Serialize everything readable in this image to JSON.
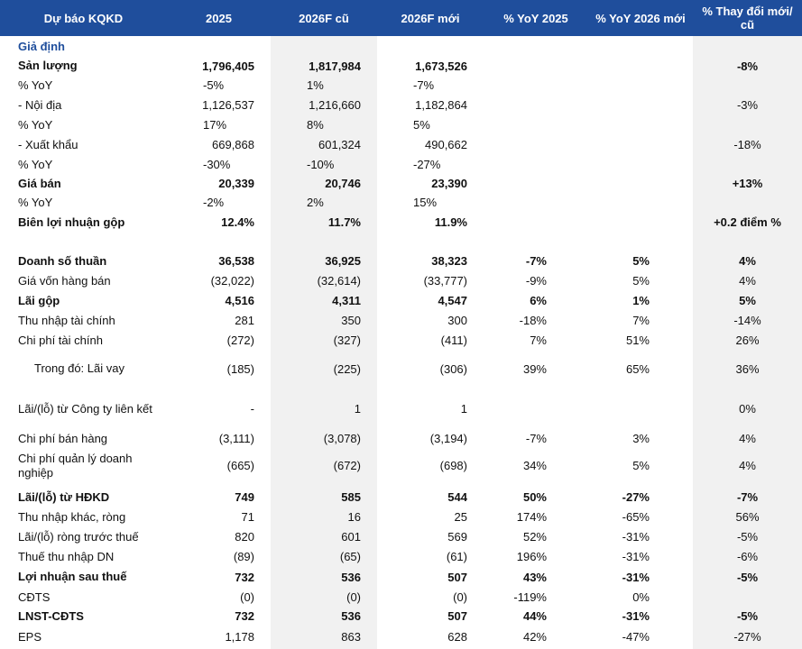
{
  "header": {
    "col_label": "Dự báo KQKD",
    "col_2025": "2025",
    "col_2026_old": "2026F cũ",
    "col_2026_new": "2026F mới",
    "col_yoy_2025": "% YoY 2025",
    "col_yoy_2026": "% YoY 2026 mới",
    "col_change": "% Thay đổi mới/ cũ"
  },
  "colors": {
    "header_bg": "#1f4e9c",
    "section_text": "#1f4e9c",
    "shade": "#f1f1f1"
  },
  "rows": [
    {
      "label": "Giả định",
      "v2025": "",
      "v26o": "",
      "v26n": "",
      "y25": "",
      "y26": "",
      "chg": ""
    },
    {
      "label": "Sản lượng",
      "v2025": "1,796,405",
      "v26o": "1,817,984",
      "v26n": "1,673,526",
      "y25": "",
      "y26": "",
      "chg": "-8%"
    },
    {
      "label": "% YoY",
      "v2025": "-5%",
      "v26o": "1%",
      "v26n": "-7%",
      "y25": "",
      "y26": "",
      "chg": ""
    },
    {
      "label": "- Nội địa",
      "v2025": "1,126,537",
      "v26o": "1,216,660",
      "v26n": "1,182,864",
      "y25": "",
      "y26": "",
      "chg": "-3%"
    },
    {
      "label": "% YoY",
      "v2025": "17%",
      "v26o": "8%",
      "v26n": "5%",
      "y25": "",
      "y26": "",
      "chg": ""
    },
    {
      "label": "- Xuất khẩu",
      "v2025": "669,868",
      "v26o": "601,324",
      "v26n": "490,662",
      "y25": "",
      "y26": "",
      "chg": "-18%"
    },
    {
      "label": "% YoY",
      "v2025": "-30%",
      "v26o": "-10%",
      "v26n": "-27%",
      "y25": "",
      "y26": "",
      "chg": ""
    },
    {
      "label": "Giá bán",
      "v2025": "20,339",
      "v26o": "20,746",
      "v26n": "23,390",
      "y25": "",
      "y26": "",
      "chg": "+13%"
    },
    {
      "label": "% YoY",
      "v2025": "-2%",
      "v26o": "2%",
      "v26n": "15%",
      "y25": "",
      "y26": "",
      "chg": ""
    },
    {
      "label": "Biên lợi nhuận gộp",
      "v2025": "12.4%",
      "v26o": "11.7%",
      "v26n": "11.9%",
      "y25": "",
      "y26": "",
      "chg": "+0.2 điểm %"
    },
    {
      "label": "",
      "v2025": "",
      "v26o": "",
      "v26n": "",
      "y25": "",
      "y26": "",
      "chg": ""
    },
    {
      "label": "Doanh số thuần",
      "v2025": "36,538",
      "v26o": "36,925",
      "v26n": "38,323",
      "y25": "-7%",
      "y26": "5%",
      "chg": "4%"
    },
    {
      "label": "Giá vốn hàng bán",
      "v2025": "(32,022)",
      "v26o": "(32,614)",
      "v26n": "(33,777)",
      "y25": "-9%",
      "y26": "5%",
      "chg": "4%"
    },
    {
      "label": "Lãi gộp",
      "v2025": "4,516",
      "v26o": "4,311",
      "v26n": "4,547",
      "y25": "6%",
      "y26": "1%",
      "chg": "5%"
    },
    {
      "label": "Thu nhập tài chính",
      "v2025": "281",
      "v26o": "350",
      "v26n": "300",
      "y25": "-18%",
      "y26": "7%",
      "chg": "-14%"
    },
    {
      "label": "Chi phí tài chính",
      "v2025": "(272)",
      "v26o": "(327)",
      "v26n": "(411)",
      "y25": "7%",
      "y26": "51%",
      "chg": "26%"
    },
    {
      "label": "Trong đó: Lãi vay",
      "v2025": "(185)",
      "v26o": "(225)",
      "v26n": "(306)",
      "y25": "39%",
      "y26": "65%",
      "chg": "36%"
    },
    {
      "label": "Lãi/(lỗ) từ Công ty liên kết",
      "v2025": "-",
      "v26o": "1",
      "v26n": "1",
      "y25": "",
      "y26": "",
      "chg": "0%"
    },
    {
      "label": "Chi phí bán hàng",
      "v2025": "(3,111)",
      "v26o": "(3,078)",
      "v26n": "(3,194)",
      "y25": "-7%",
      "y26": "3%",
      "chg": "4%"
    },
    {
      "label": "Chi phí quản lý doanh nghiệp",
      "v2025": "(665)",
      "v26o": "(672)",
      "v26n": "(698)",
      "y25": "34%",
      "y26": "5%",
      "chg": "4%"
    },
    {
      "label": "Lãi/(lỗ) từ HĐKD",
      "v2025": "749",
      "v26o": "585",
      "v26n": "544",
      "y25": "50%",
      "y26": "-27%",
      "chg": "-7%"
    },
    {
      "label": "Thu nhập khác, ròng",
      "v2025": "71",
      "v26o": "16",
      "v26n": "25",
      "y25": "174%",
      "y26": "-65%",
      "chg": "56%"
    },
    {
      "label": "Lãi/(lỗ) ròng trước thuế",
      "v2025": "820",
      "v26o": "601",
      "v26n": "569",
      "y25": "52%",
      "y26": "-31%",
      "chg": "-5%"
    },
    {
      "label": "Thuế thu nhập DN",
      "v2025": "(89)",
      "v26o": "(65)",
      "v26n": "(61)",
      "y25": "196%",
      "y26": "-31%",
      "chg": "-6%"
    },
    {
      "label": "Lợi nhuận sau thuế",
      "v2025": "732",
      "v26o": "536",
      "v26n": "507",
      "y25": "43%",
      "y26": "-31%",
      "chg": "-5%"
    },
    {
      "label": "CĐTS",
      "v2025": "(0)",
      "v26o": "(0)",
      "v26n": "(0)",
      "y25": "-119%",
      "y26": "0%",
      "chg": ""
    },
    {
      "label": "LNST-CĐTS",
      "v2025": "732",
      "v26o": "536",
      "v26n": "507",
      "y25": "44%",
      "y26": "-31%",
      "chg": "-5%"
    },
    {
      "label": "EPS",
      "v2025": "1,178",
      "v26o": "863",
      "v26n": "628",
      "y25": "42%",
      "y26": "-47%",
      "chg": "-27%"
    }
  ]
}
